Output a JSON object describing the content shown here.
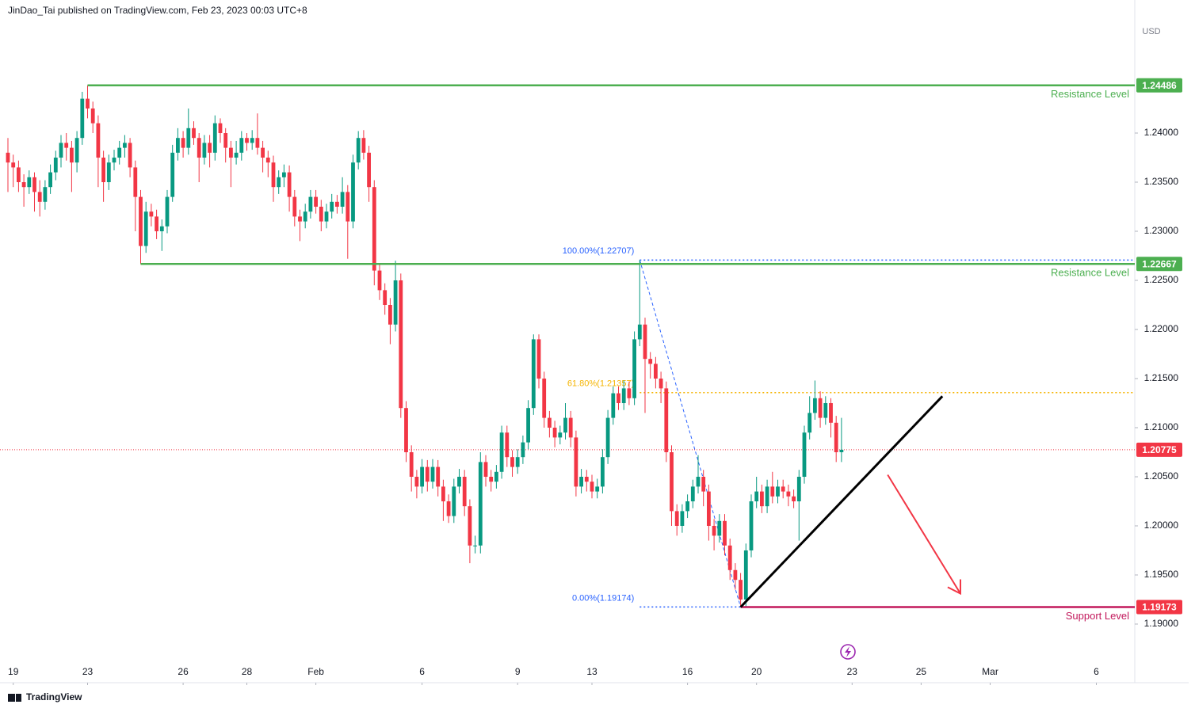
{
  "header": "JinDao_Tai published on TradingView.com, Feb 23, 2023 00:03 UTC+8",
  "brand": "TradingView",
  "chart_data": {
    "type": "candlestick",
    "currency": "USD",
    "up_color": "#089981",
    "down_color": "#f23645",
    "xlim": [
      -1.4925,
      212.24
    ],
    "ylim": [
      1.18403,
      1.25355
    ],
    "xticks": [
      {
        "value": 1,
        "label": "19"
      },
      {
        "value": 15,
        "label": "23"
      },
      {
        "value": 33,
        "label": "26"
      },
      {
        "value": 45,
        "label": "28"
      },
      {
        "value": 58,
        "label": "Feb"
      },
      {
        "value": 78,
        "label": "6"
      },
      {
        "value": 96,
        "label": "9"
      },
      {
        "value": 110,
        "label": "13"
      },
      {
        "value": 128,
        "label": "16"
      },
      {
        "value": 141,
        "label": "20"
      },
      {
        "value": 159,
        "label": "23"
      },
      {
        "value": 172,
        "label": "25"
      },
      {
        "value": 185,
        "label": "Mar"
      },
      {
        "value": 205,
        "label": "6"
      }
    ],
    "yticks": [
      {
        "value": 1.19,
        "label": "1.19000"
      },
      {
        "value": 1.195,
        "label": "1.19500"
      },
      {
        "value": 1.2,
        "label": "1.20000"
      },
      {
        "value": 1.205,
        "label": "1.20500"
      },
      {
        "value": 1.21,
        "label": "1.21000"
      },
      {
        "value": 1.215,
        "label": "1.21500"
      },
      {
        "value": 1.22,
        "label": "1.22000"
      },
      {
        "value": 1.225,
        "label": "1.22500"
      },
      {
        "value": 1.23,
        "label": "1.23000"
      },
      {
        "value": 1.235,
        "label": "1.23500"
      },
      {
        "value": 1.24,
        "label": "1.24000"
      }
    ],
    "series": [
      {
        "values": [
          [
            1.238,
            1.2395,
            1.234,
            1.237
          ],
          [
            1.237,
            1.2378,
            1.2345,
            1.2365
          ],
          [
            1.2365,
            1.2372,
            1.234,
            1.235
          ],
          [
            1.235,
            1.2358,
            1.2325,
            1.2345
          ],
          [
            1.2345,
            1.2362,
            1.2338,
            1.2355
          ],
          [
            1.2355,
            1.236,
            1.232,
            1.234
          ],
          [
            1.234,
            1.2352,
            1.2315,
            1.233
          ],
          [
            1.233,
            1.2352,
            1.2322,
            1.2345
          ],
          [
            1.2345,
            1.2368,
            1.2338,
            1.236
          ],
          [
            1.236,
            1.2382,
            1.2352,
            1.2375
          ],
          [
            1.2375,
            1.2398,
            1.2365,
            1.239
          ],
          [
            1.239,
            1.24,
            1.2372,
            1.2385
          ],
          [
            1.2385,
            1.2392,
            1.234,
            1.237
          ],
          [
            1.237,
            1.2402,
            1.236,
            1.2395
          ],
          [
            1.2395,
            1.2442,
            1.2388,
            1.2435
          ],
          [
            1.2435,
            1.24486,
            1.2415,
            1.2425
          ],
          [
            1.2425,
            1.2432,
            1.24,
            1.241
          ],
          [
            1.241,
            1.2418,
            1.2345,
            1.2375
          ],
          [
            1.2375,
            1.2382,
            1.233,
            1.235
          ],
          [
            1.235,
            1.2378,
            1.2342,
            1.237
          ],
          [
            1.237,
            1.2383,
            1.2362,
            1.2375
          ],
          [
            1.2375,
            1.2392,
            1.2368,
            1.2385
          ],
          [
            1.2385,
            1.2398,
            1.2375,
            1.239
          ],
          [
            1.239,
            1.2395,
            1.2355,
            1.2365
          ],
          [
            1.2365,
            1.2372,
            1.23,
            1.2335
          ],
          [
            1.2335,
            1.2342,
            1.22667,
            1.2285
          ],
          [
            1.2285,
            1.233,
            1.2278,
            1.232
          ],
          [
            1.232,
            1.2328,
            1.2305,
            1.2315
          ],
          [
            1.2315,
            1.2322,
            1.2292,
            1.23
          ],
          [
            1.23,
            1.2312,
            1.228,
            1.2305
          ],
          [
            1.2305,
            1.2342,
            1.2298,
            1.2335
          ],
          [
            1.2335,
            1.2388,
            1.233,
            1.238
          ],
          [
            1.238,
            1.2405,
            1.2372,
            1.2395
          ],
          [
            1.2395,
            1.2402,
            1.2375,
            1.2385
          ],
          [
            1.2385,
            1.2425,
            1.2378,
            1.2405
          ],
          [
            1.2405,
            1.2412,
            1.2388,
            1.2395
          ],
          [
            1.2395,
            1.24,
            1.235,
            1.2375
          ],
          [
            1.2375,
            1.2398,
            1.2368,
            1.239
          ],
          [
            1.239,
            1.2398,
            1.2365,
            1.238
          ],
          [
            1.238,
            1.2418,
            1.2372,
            1.241
          ],
          [
            1.241,
            1.2415,
            1.239,
            1.24
          ],
          [
            1.24,
            1.2405,
            1.237,
            1.2385
          ],
          [
            1.2385,
            1.2392,
            1.2345,
            1.2375
          ],
          [
            1.2375,
            1.2392,
            1.2368,
            1.238
          ],
          [
            1.238,
            1.2402,
            1.2372,
            1.2395
          ],
          [
            1.2395,
            1.24,
            1.2382,
            1.239
          ],
          [
            1.239,
            1.2403,
            1.2383,
            1.2395
          ],
          [
            1.2395,
            1.242,
            1.2378,
            1.2385
          ],
          [
            1.2385,
            1.2392,
            1.236,
            1.2375
          ],
          [
            1.2375,
            1.2382,
            1.2355,
            1.237
          ],
          [
            1.237,
            1.2377,
            1.233,
            1.2345
          ],
          [
            1.2345,
            1.2362,
            1.2338,
            1.2355
          ],
          [
            1.2355,
            1.2368,
            1.2345,
            1.236
          ],
          [
            1.236,
            1.2367,
            1.232,
            1.2335
          ],
          [
            1.2335,
            1.2342,
            1.2305,
            1.2315
          ],
          [
            1.2315,
            1.2322,
            1.229,
            1.231
          ],
          [
            1.231,
            1.2328,
            1.2303,
            1.232
          ],
          [
            1.232,
            1.2342,
            1.2313,
            1.2335
          ],
          [
            1.2335,
            1.2342,
            1.2318,
            1.2325
          ],
          [
            1.2325,
            1.2332,
            1.23,
            1.231
          ],
          [
            1.231,
            1.2328,
            1.2303,
            1.232
          ],
          [
            1.232,
            1.2338,
            1.2313,
            1.233
          ],
          [
            1.233,
            1.2337,
            1.2318,
            1.2325
          ],
          [
            1.2325,
            1.2355,
            1.2318,
            1.234
          ],
          [
            1.234,
            1.2347,
            1.2272,
            1.231
          ],
          [
            1.231,
            1.2378,
            1.2303,
            1.237
          ],
          [
            1.237,
            1.2402,
            1.2363,
            1.2395
          ],
          [
            1.2395,
            1.2403,
            1.2373,
            1.238
          ],
          [
            1.238,
            1.2387,
            1.233,
            1.2345
          ],
          [
            1.2345,
            1.2352,
            1.2245,
            1.226
          ],
          [
            1.226,
            1.2267,
            1.223,
            1.224
          ],
          [
            1.224,
            1.2247,
            1.2215,
            1.2225
          ],
          [
            1.2225,
            1.2232,
            1.2185,
            1.2205
          ],
          [
            1.2205,
            1.227,
            1.2198,
            1.225
          ],
          [
            1.225,
            1.2257,
            1.211,
            1.212
          ],
          [
            1.212,
            1.2127,
            1.2065,
            1.2075
          ],
          [
            1.2075,
            1.2082,
            1.2035,
            1.205
          ],
          [
            1.205,
            1.2057,
            1.2028,
            1.204
          ],
          [
            1.204,
            1.2068,
            1.2033,
            1.206
          ],
          [
            1.206,
            1.2067,
            1.2035,
            1.2045
          ],
          [
            1.2045,
            1.2068,
            1.2038,
            1.206
          ],
          [
            1.206,
            1.2067,
            1.203,
            1.204
          ],
          [
            1.204,
            1.2047,
            1.2005,
            1.2025
          ],
          [
            1.2025,
            1.2032,
            1.2003,
            1.201
          ],
          [
            1.201,
            1.2048,
            1.2003,
            1.204
          ],
          [
            1.204,
            1.2058,
            1.2033,
            1.205
          ],
          [
            1.205,
            1.2057,
            1.201,
            1.202
          ],
          [
            1.202,
            1.2027,
            1.1962,
            1.198
          ],
          [
            1.198,
            1.199,
            1.1972,
            1.198
          ],
          [
            1.198,
            1.2075,
            1.1972,
            1.2065
          ],
          [
            1.2065,
            1.2072,
            1.204,
            1.205
          ],
          [
            1.205,
            1.2057,
            1.2035,
            1.2045
          ],
          [
            1.2045,
            1.2062,
            1.2038,
            1.2055
          ],
          [
            1.2055,
            1.2102,
            1.2048,
            1.2095
          ],
          [
            1.2095,
            1.2102,
            1.206,
            1.207
          ],
          [
            1.207,
            1.2077,
            1.205,
            1.206
          ],
          [
            1.206,
            1.2078,
            1.2053,
            1.207
          ],
          [
            1.207,
            1.2092,
            1.2063,
            1.2085
          ],
          [
            1.2085,
            1.2128,
            1.2078,
            1.212
          ],
          [
            1.212,
            1.2195,
            1.2113,
            1.219
          ],
          [
            1.219,
            1.2195,
            1.214,
            1.215
          ],
          [
            1.215,
            1.2157,
            1.21,
            1.211
          ],
          [
            1.211,
            1.2117,
            1.209,
            1.21
          ],
          [
            1.21,
            1.2107,
            1.208,
            1.209
          ],
          [
            1.209,
            1.2102,
            1.2083,
            1.2095
          ],
          [
            1.2095,
            1.2125,
            1.2088,
            1.211
          ],
          [
            1.211,
            1.2117,
            1.208,
            1.209
          ],
          [
            1.209,
            1.2097,
            1.203,
            1.204
          ],
          [
            1.204,
            1.2058,
            1.2033,
            1.205
          ],
          [
            1.205,
            1.2057,
            1.2035,
            1.2045
          ],
          [
            1.2045,
            1.2052,
            1.2028,
            1.2035
          ],
          [
            1.2035,
            1.2048,
            1.2028,
            1.204
          ],
          [
            1.204,
            1.2078,
            1.2033,
            1.207
          ],
          [
            1.207,
            1.2118,
            1.2063,
            1.211
          ],
          [
            1.211,
            1.2142,
            1.2103,
            1.2135
          ],
          [
            1.2135,
            1.2142,
            1.2118,
            1.2125
          ],
          [
            1.2125,
            1.2148,
            1.2118,
            1.214
          ],
          [
            1.214,
            1.2147,
            1.2123,
            1.213
          ],
          [
            1.213,
            1.2198,
            1.2123,
            1.219
          ],
          [
            1.219,
            1.22707,
            1.2183,
            1.2205
          ],
          [
            1.2205,
            1.2212,
            1.2115,
            1.217
          ],
          [
            1.217,
            1.2177,
            1.215,
            1.2165
          ],
          [
            1.2165,
            1.2172,
            1.214,
            1.215
          ],
          [
            1.215,
            1.2157,
            1.2125,
            1.214
          ],
          [
            1.214,
            1.2147,
            1.2065,
            1.2075
          ],
          [
            1.2075,
            1.2082,
            1.2,
            1.2015
          ],
          [
            1.2015,
            1.2022,
            1.199,
            1.2
          ],
          [
            1.2,
            1.2022,
            1.1993,
            1.2015
          ],
          [
            1.2015,
            1.2032,
            1.2008,
            1.2025
          ],
          [
            1.2025,
            1.2047,
            1.2018,
            1.204
          ],
          [
            1.204,
            1.2072,
            1.2033,
            1.205
          ],
          [
            1.205,
            1.2057,
            1.202,
            1.2035
          ],
          [
            1.2035,
            1.2042,
            1.1985,
            1.2
          ],
          [
            1.2,
            1.2007,
            1.1975,
            1.199
          ],
          [
            1.199,
            1.2012,
            1.1983,
            1.2005
          ],
          [
            1.2005,
            1.2012,
            1.197,
            1.198
          ],
          [
            1.198,
            1.1987,
            1.1945,
            1.1955
          ],
          [
            1.1955,
            1.1962,
            1.1935,
            1.1945
          ],
          [
            1.1945,
            1.1952,
            1.19173,
            1.1925
          ],
          [
            1.1925,
            1.1982,
            1.1918,
            1.1975
          ],
          [
            1.1975,
            1.2032,
            1.1968,
            1.2025
          ],
          [
            1.2025,
            1.205,
            1.2018,
            1.2035
          ],
          [
            1.2035,
            1.2042,
            1.2013,
            1.202
          ],
          [
            1.202,
            1.2047,
            1.2013,
            1.204
          ],
          [
            1.204,
            1.2055,
            1.2023,
            1.203
          ],
          [
            1.203,
            1.2047,
            1.2023,
            1.204
          ],
          [
            1.204,
            1.2047,
            1.2028,
            1.2035
          ],
          [
            1.2035,
            1.2042,
            1.202,
            1.203
          ],
          [
            1.203,
            1.2037,
            1.2018,
            1.2025
          ],
          [
            1.2025,
            1.2057,
            1.1985,
            1.205
          ],
          [
            1.205,
            1.2102,
            1.2043,
            1.2095
          ],
          [
            1.2095,
            1.2132,
            1.2088,
            1.2115
          ],
          [
            1.2115,
            1.2148,
            1.2108,
            1.213
          ],
          [
            1.213,
            1.2137,
            1.21,
            1.211
          ],
          [
            1.211,
            1.2132,
            1.2103,
            1.2125
          ],
          [
            1.2125,
            1.213,
            1.209,
            1.2105
          ],
          [
            1.2105,
            1.2112,
            1.2065,
            1.2075
          ],
          [
            1.2075,
            1.211,
            1.2065,
            1.20775
          ]
        ]
      }
    ],
    "levels": [
      {
        "price": 1.24486,
        "label": "Resistance Level",
        "color": "#4caf50",
        "start": 15
      },
      {
        "price": 1.22667,
        "label": "Resistance Level",
        "color": "#4caf50",
        "start": 25
      },
      {
        "price": 1.19173,
        "label": "Support Level",
        "color": "#c2185b",
        "start": 138
      }
    ],
    "current_price": {
      "price": 1.20775,
      "color": "#f23645"
    },
    "fibonacci": [
      {
        "price": 1.22707,
        "label": "100.00%(1.22707)",
        "color": "#2962ff",
        "start": 119
      },
      {
        "price": 1.21357,
        "label": "61.80%(1.21357)",
        "color": "#f5b400",
        "start": 119
      },
      {
        "price": 1.19174,
        "label": "0.00%(1.19174)",
        "color": "#2962ff",
        "start": 119
      }
    ],
    "fib_diagonal": {
      "x": [
        119,
        138
      ],
      "y": [
        1.22707,
        1.19174
      ],
      "color": "#2962ff"
    },
    "trendline": {
      "x": [
        138,
        176
      ],
      "y": [
        1.19173,
        1.2132
      ],
      "color": "#000000"
    },
    "arrow": {
      "x": [
        165.7,
        179.4
      ],
      "y": [
        1.2052,
        1.1931
      ],
      "color": "#f23645"
    }
  }
}
